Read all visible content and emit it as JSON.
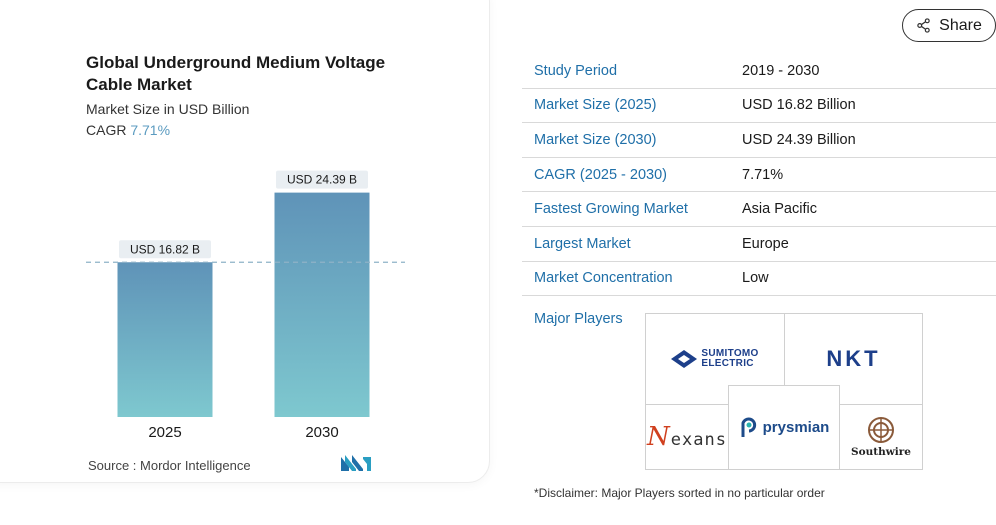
{
  "chart_card": {
    "title": "Global Underground Medium Voltage Cable Market",
    "subtitle": "Market Size in USD Billion",
    "cagr_label": "CAGR",
    "cagr_value": "7.71%",
    "source": "Source :  Mordor Intelligence"
  },
  "chart_data": {
    "type": "bar",
    "categories": [
      "2025",
      "2030"
    ],
    "values": [
      16.82,
      24.39
    ],
    "data_labels": [
      "USD 16.82 B",
      "USD 24.39 B"
    ],
    "title": "Global Underground Medium Voltage Cable Market",
    "ylabel": "",
    "xlabel": "",
    "ylim": [
      0,
      25
    ],
    "reference_line": 16.82,
    "grid": false,
    "colors": {
      "bar_top": "#5f93b8",
      "bar_bottom": "#7ec8cf",
      "label_bg": "#e9eef2",
      "ref_line": "#8fb2c8"
    }
  },
  "share": {
    "label": "Share"
  },
  "table": {
    "rows": [
      {
        "key": "Study Period",
        "value": "2019 - 2030"
      },
      {
        "key": "Market Size (2025)",
        "value": "USD 16.82 Billion"
      },
      {
        "key": "Market Size (2030)",
        "value": "USD 24.39 Billion"
      },
      {
        "key": "CAGR (2025 - 2030)",
        "value": "7.71%"
      },
      {
        "key": "Fastest Growing Market",
        "value": "Asia Pacific"
      },
      {
        "key": "Largest Market",
        "value": "Europe"
      },
      {
        "key": "Market Concentration",
        "value": "Low"
      }
    ]
  },
  "players": {
    "label": "Major Players",
    "logos": {
      "sumitomo_line1": "SUMITOMO",
      "sumitomo_line2": "ELECTRIC",
      "nkt": "NKT",
      "nexans_n": "N",
      "nexans_rest": "exans",
      "prysmian": "prysmian",
      "southwire": "Southwire"
    }
  },
  "disclaimer": "*Disclaimer: Major Players sorted in no particular order"
}
